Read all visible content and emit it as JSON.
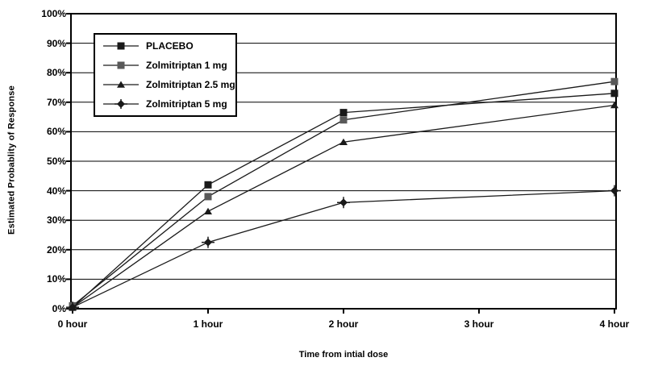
{
  "chart_data": {
    "type": "line",
    "title": "",
    "xlabel": "Time from intial dose",
    "ylabel": "Estimated Probablity of Response",
    "x_tick_labels": [
      "0 hour",
      "1 hour",
      "2 hour",
      "3 hour",
      "4 hour"
    ],
    "x_values_hours": [
      0,
      1,
      2,
      4
    ],
    "ylim": [
      0,
      100
    ],
    "ytick_step": 10,
    "ytick_labels": [
      "100%",
      "90%",
      "80%",
      "70%",
      "60%",
      "50%",
      "40%",
      "30%",
      "20%",
      "10%",
      "0%"
    ],
    "grid": "horizontal gridlines at every 10 percent",
    "legend_position": "upper-left inside plot area",
    "axis_color": "#000000",
    "line_color": "#1a1a1a",
    "background_color": "#ffffff",
    "series": [
      {
        "name": "PLACEBO",
        "marker": "filled-square",
        "marker_color": "#1a1a1a",
        "values_pct": [
          0.5,
          42,
          66.5,
          73
        ]
      },
      {
        "name": "Zolmitriptan 1 mg",
        "marker": "filled-square",
        "marker_color": "#595959",
        "values_pct": [
          1,
          38,
          64,
          77
        ]
      },
      {
        "name": "Zolmitriptan 2.5 mg",
        "marker": "filled-triangle",
        "marker_color": "#1a1a1a",
        "values_pct": [
          0.5,
          33,
          56.5,
          69
        ]
      },
      {
        "name": "Zolmitriptan 5 mg",
        "marker": "diamond-cross",
        "marker_color": "#1a1a1a",
        "values_pct": [
          0.5,
          22.5,
          36,
          40
        ]
      }
    ]
  }
}
